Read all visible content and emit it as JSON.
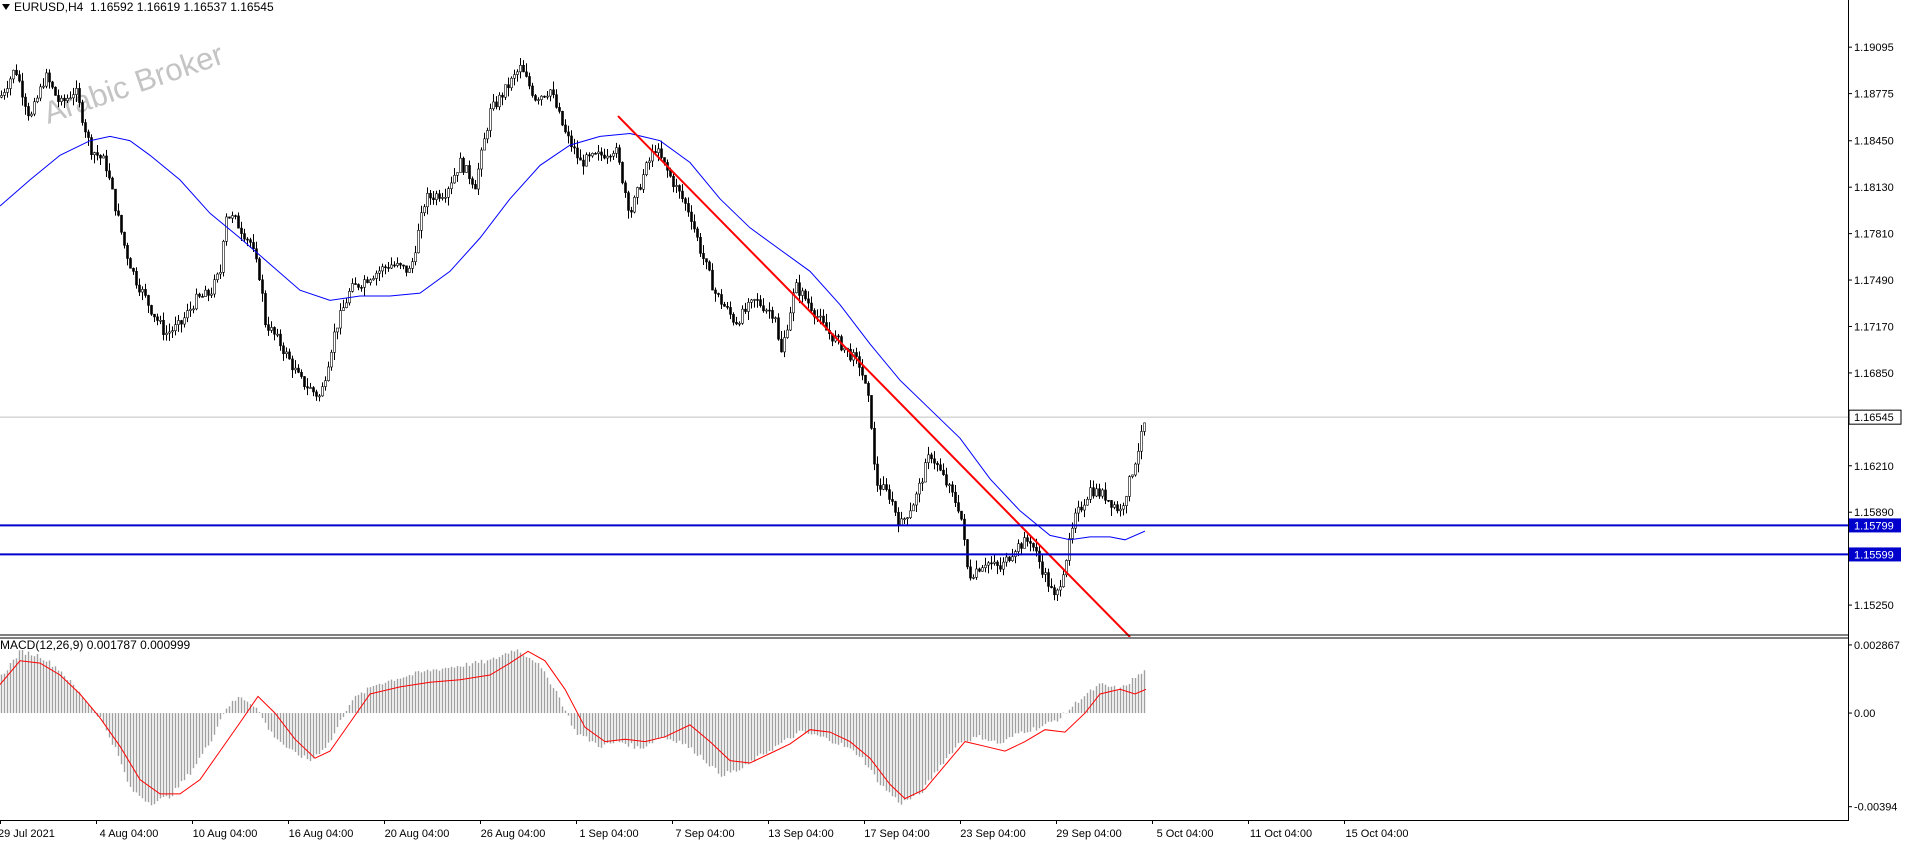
{
  "header": {
    "symbol": "EURUSD,H4",
    "open": "1.16592",
    "high": "1.16619",
    "low": "1.16537",
    "close": "1.16545"
  },
  "watermark": "Arabic Broker",
  "macd_header": {
    "label": "MACD(12,26,9)",
    "main": "0.001787",
    "signal": "0.000999"
  },
  "colors": {
    "candle": "#000000",
    "moving_average": "#0000ff",
    "trendline": "#ff0000",
    "support_lines": "#0000cc",
    "macd_histogram": "#a0a0a0",
    "macd_signal": "#ff0000",
    "current_price_line": "#c0c0c0"
  },
  "chart_data": {
    "type": "candlestick",
    "symbol": "EURUSD",
    "timeframe": "H4",
    "x_tick_labels": [
      "29 Jul 2021",
      "4 Aug 04:00",
      "10 Aug 04:00",
      "16 Aug 04:00",
      "20 Aug 04:00",
      "26 Aug 04:00",
      "1 Sep 04:00",
      "7 Sep 04:00",
      "13 Sep 04:00",
      "17 Sep 04:00",
      "23 Sep 04:00",
      "29 Sep 04:00",
      "5 Oct 04:00",
      "11 Oct 04:00",
      "15 Oct 04:00"
    ],
    "y_tick_labels": [
      "1.19095",
      "1.18775",
      "1.18450",
      "1.18130",
      "1.17810",
      "1.17490",
      "1.17170",
      "1.16850",
      "1.16210",
      "1.15890",
      "1.15250"
    ],
    "price_range": [
      1.1503,
      1.1942
    ],
    "current_price": "1.16545",
    "horizontal_levels": [
      "1.15799",
      "1.15599"
    ],
    "close_path": [
      [
        0,
        1.1875
      ],
      [
        15,
        1.1895
      ],
      [
        30,
        1.186
      ],
      [
        45,
        1.189
      ],
      [
        60,
        1.187
      ],
      [
        75,
        1.188
      ],
      [
        90,
        1.184
      ],
      [
        105,
        1.183
      ],
      [
        115,
        1.18
      ],
      [
        125,
        1.177
      ],
      [
        135,
        1.175
      ],
      [
        150,
        1.173
      ],
      [
        165,
        1.1712
      ],
      [
        180,
        1.1718
      ],
      [
        195,
        1.1735
      ],
      [
        210,
        1.174
      ],
      [
        220,
        1.1755
      ],
      [
        225,
        1.1795
      ],
      [
        235,
        1.179
      ],
      [
        250,
        1.1775
      ],
      [
        260,
        1.175
      ],
      [
        265,
        1.172
      ],
      [
        280,
        1.1705
      ],
      [
        300,
        1.168
      ],
      [
        320,
        1.1668
      ],
      [
        335,
        1.1715
      ],
      [
        350,
        1.1742
      ],
      [
        370,
        1.1752
      ],
      [
        390,
        1.176
      ],
      [
        410,
        1.1755
      ],
      [
        425,
        1.1805
      ],
      [
        445,
        1.181
      ],
      [
        460,
        1.183
      ],
      [
        475,
        1.1815
      ],
      [
        490,
        1.1865
      ],
      [
        505,
        1.188
      ],
      [
        520,
        1.1895
      ],
      [
        535,
        1.1875
      ],
      [
        550,
        1.188
      ],
      [
        565,
        1.185
      ],
      [
        580,
        1.183
      ],
      [
        600,
        1.1835
      ],
      [
        615,
        1.184
      ],
      [
        630,
        1.1795
      ],
      [
        645,
        1.1825
      ],
      [
        655,
        1.184
      ],
      [
        670,
        1.182
      ],
      [
        690,
        1.1795
      ],
      [
        700,
        1.177
      ],
      [
        715,
        1.174
      ],
      [
        735,
        1.172
      ],
      [
        755,
        1.1735
      ],
      [
        775,
        1.1725
      ],
      [
        780,
        1.1695
      ],
      [
        795,
        1.1745
      ],
      [
        810,
        1.1732
      ],
      [
        825,
        1.1715
      ],
      [
        840,
        1.1705
      ],
      [
        860,
        1.169
      ],
      [
        870,
        1.166
      ],
      [
        875,
        1.161
      ],
      [
        890,
        1.16
      ],
      [
        900,
        1.158
      ],
      [
        915,
        1.1598
      ],
      [
        930,
        1.163
      ],
      [
        945,
        1.161
      ],
      [
        960,
        1.159
      ],
      [
        968,
        1.1545
      ],
      [
        985,
        1.1555
      ],
      [
        1000,
        1.155
      ],
      [
        1015,
        1.1565
      ],
      [
        1030,
        1.157
      ],
      [
        1045,
        1.1545
      ],
      [
        1055,
        1.1528
      ],
      [
        1065,
        1.1555
      ],
      [
        1075,
        1.1585
      ],
      [
        1090,
        1.1605
      ],
      [
        1105,
        1.16
      ],
      [
        1120,
        1.159
      ],
      [
        1130,
        1.1612
      ],
      [
        1140,
        1.1638
      ],
      [
        1146,
        1.16545
      ]
    ],
    "moving_average": [
      [
        0,
        1.18
      ],
      [
        30,
        1.1818
      ],
      [
        60,
        1.1835
      ],
      [
        90,
        1.1845
      ],
      [
        110,
        1.1848
      ],
      [
        130,
        1.1845
      ],
      [
        150,
        1.1835
      ],
      [
        180,
        1.1818
      ],
      [
        210,
        1.1795
      ],
      [
        240,
        1.1778
      ],
      [
        270,
        1.176
      ],
      [
        300,
        1.1742
      ],
      [
        330,
        1.1735
      ],
      [
        360,
        1.1738
      ],
      [
        390,
        1.1738
      ],
      [
        420,
        1.174
      ],
      [
        450,
        1.1755
      ],
      [
        480,
        1.1778
      ],
      [
        510,
        1.1805
      ],
      [
        540,
        1.1828
      ],
      [
        570,
        1.1842
      ],
      [
        600,
        1.1848
      ],
      [
        630,
        1.185
      ],
      [
        660,
        1.1845
      ],
      [
        690,
        1.183
      ],
      [
        720,
        1.1805
      ],
      [
        750,
        1.1785
      ],
      [
        780,
        1.177
      ],
      [
        810,
        1.1755
      ],
      [
        840,
        1.1732
      ],
      [
        870,
        1.1705
      ],
      [
        900,
        1.168
      ],
      [
        930,
        1.166
      ],
      [
        960,
        1.164
      ],
      [
        990,
        1.1612
      ],
      [
        1020,
        1.159
      ],
      [
        1050,
        1.1573
      ],
      [
        1070,
        1.157
      ],
      [
        1090,
        1.1572
      ],
      [
        1110,
        1.1572
      ],
      [
        1125,
        1.157
      ],
      [
        1145,
        1.1576
      ]
    ],
    "trendline": [
      [
        618,
        1.1862
      ],
      [
        1130,
        1.1503
      ]
    ],
    "macd": {
      "label": "MACD(12,26,9)",
      "y_tick_labels": [
        "0.002867",
        "0.00",
        "-0.00394"
      ],
      "range": [
        -0.0045,
        0.0032
      ],
      "histogram": [
        [
          0,
          0.0015
        ],
        [
          20,
          0.0026
        ],
        [
          40,
          0.0024
        ],
        [
          60,
          0.0018
        ],
        [
          80,
          0.0008
        ],
        [
          100,
          -0.0002
        ],
        [
          115,
          -0.0015
        ],
        [
          130,
          -0.0032
        ],
        [
          150,
          -0.0038
        ],
        [
          170,
          -0.0035
        ],
        [
          190,
          -0.0025
        ],
        [
          210,
          -0.0012
        ],
        [
          225,
          0.0002
        ],
        [
          240,
          0.0007
        ],
        [
          255,
          0.0003
        ],
        [
          270,
          -0.0008
        ],
        [
          290,
          -0.0016
        ],
        [
          310,
          -0.002
        ],
        [
          330,
          -0.0012
        ],
        [
          350,
          0.0005
        ],
        [
          375,
          0.0012
        ],
        [
          400,
          0.0015
        ],
        [
          430,
          0.0018
        ],
        [
          460,
          0.002
        ],
        [
          490,
          0.0022
        ],
        [
          515,
          0.0027
        ],
        [
          535,
          0.0022
        ],
        [
          555,
          0.001
        ],
        [
          575,
          -0.0008
        ],
        [
          600,
          -0.0014
        ],
        [
          620,
          -0.0012
        ],
        [
          640,
          -0.0015
        ],
        [
          660,
          -0.001
        ],
        [
          680,
          -0.0012
        ],
        [
          700,
          -0.0018
        ],
        [
          720,
          -0.0026
        ],
        [
          740,
          -0.0024
        ],
        [
          760,
          -0.0018
        ],
        [
          780,
          -0.0013
        ],
        [
          800,
          -0.0008
        ],
        [
          820,
          -0.001
        ],
        [
          840,
          -0.0013
        ],
        [
          860,
          -0.0018
        ],
        [
          880,
          -0.003
        ],
        [
          900,
          -0.0038
        ],
        [
          920,
          -0.0034
        ],
        [
          940,
          -0.0022
        ],
        [
          960,
          -0.0012
        ],
        [
          980,
          -0.001
        ],
        [
          1000,
          -0.0013
        ],
        [
          1020,
          -0.0008
        ],
        [
          1040,
          -0.0006
        ],
        [
          1060,
          -0.0002
        ],
        [
          1080,
          0.0006
        ],
        [
          1100,
          0.0012
        ],
        [
          1120,
          0.001
        ],
        [
          1135,
          0.0015
        ],
        [
          1146,
          0.0018
        ]
      ],
      "signal": [
        [
          0,
          0.0012
        ],
        [
          20,
          0.0022
        ],
        [
          40,
          0.0021
        ],
        [
          60,
          0.0016
        ],
        [
          80,
          0.0008
        ],
        [
          100,
          -0.0002
        ],
        [
          120,
          -0.0014
        ],
        [
          140,
          -0.0028
        ],
        [
          160,
          -0.0034
        ],
        [
          180,
          -0.0034
        ],
        [
          200,
          -0.0028
        ],
        [
          220,
          -0.0016
        ],
        [
          240,
          -0.0004
        ],
        [
          258,
          0.0007
        ],
        [
          275,
          0.0
        ],
        [
          295,
          -0.0011
        ],
        [
          315,
          -0.0019
        ],
        [
          330,
          -0.0016
        ],
        [
          350,
          -0.0004
        ],
        [
          370,
          0.0008
        ],
        [
          400,
          0.0011
        ],
        [
          430,
          0.0013
        ],
        [
          460,
          0.0014
        ],
        [
          490,
          0.0016
        ],
        [
          510,
          0.0021
        ],
        [
          528,
          0.0026
        ],
        [
          545,
          0.0022
        ],
        [
          565,
          0.001
        ],
        [
          585,
          -0.0006
        ],
        [
          605,
          -0.0012
        ],
        [
          625,
          -0.0011
        ],
        [
          645,
          -0.0012
        ],
        [
          665,
          -0.001
        ],
        [
          690,
          -0.0005
        ],
        [
          710,
          -0.0012
        ],
        [
          730,
          -0.002
        ],
        [
          750,
          -0.0021
        ],
        [
          770,
          -0.0017
        ],
        [
          790,
          -0.0013
        ],
        [
          810,
          -0.0007
        ],
        [
          830,
          -0.0008
        ],
        [
          850,
          -0.0012
        ],
        [
          870,
          -0.0019
        ],
        [
          890,
          -0.003
        ],
        [
          905,
          -0.0036
        ],
        [
          925,
          -0.0032
        ],
        [
          945,
          -0.0022
        ],
        [
          965,
          -0.0012
        ],
        [
          985,
          -0.0014
        ],
        [
          1005,
          -0.0016
        ],
        [
          1025,
          -0.0012
        ],
        [
          1045,
          -0.0007
        ],
        [
          1065,
          -0.0008
        ],
        [
          1085,
          0.0
        ],
        [
          1100,
          0.0008
        ],
        [
          1120,
          0.001
        ],
        [
          1135,
          0.0008
        ],
        [
          1146,
          0.001
        ]
      ]
    }
  }
}
